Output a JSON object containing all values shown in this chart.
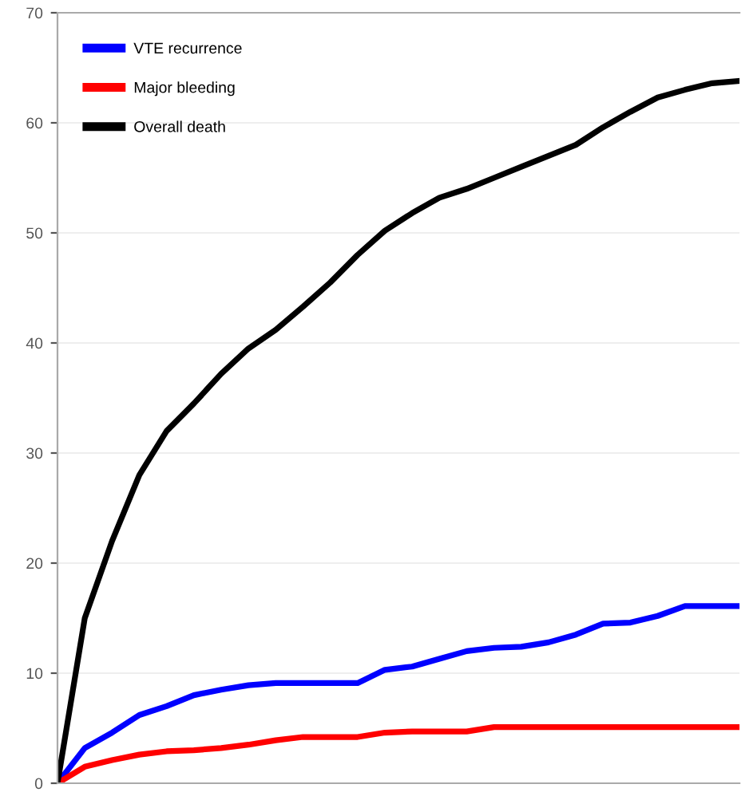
{
  "chart_data": {
    "type": "line",
    "categories": [
      null,
      null,
      null,
      null,
      null,
      null,
      null,
      null,
      null,
      null,
      null,
      null,
      null,
      null,
      null,
      null,
      null,
      null,
      null,
      null,
      null,
      null,
      null,
      null,
      null,
      null
    ],
    "series": [
      {
        "name": "VTE recurrence",
        "color": "#0000ff",
        "values": [
          0,
          3.2,
          4.6,
          6.2,
          7,
          8,
          8.5,
          8.9,
          9.1,
          9.1,
          9.1,
          9.1,
          10.3,
          10.6,
          11.3,
          12,
          12.3,
          12.4,
          12.8,
          13.5,
          14.5,
          14.6,
          15.2,
          16.1,
          16.1,
          16.1
        ]
      },
      {
        "name": "Major bleeding",
        "color": "#ff0000",
        "values": [
          0,
          1.5,
          2.1,
          2.6,
          2.9,
          3.0,
          3.2,
          3.5,
          3.9,
          4.2,
          4.2,
          4.2,
          4.6,
          4.7,
          4.7,
          4.7,
          5.1,
          5.1,
          5.1,
          5.1,
          5.1,
          5.1,
          5.1,
          5.1,
          5.1,
          5.1
        ]
      },
      {
        "name": "Overall death",
        "color": "#000000",
        "values": [
          0,
          15,
          22,
          28,
          32,
          34.5,
          37.2,
          39.5,
          41.2,
          43.3,
          45.5,
          48,
          50.2,
          51.8,
          53.2,
          54,
          55,
          56,
          57,
          58,
          59.6,
          61,
          62.3,
          63,
          63.6,
          63.8
        ]
      }
    ],
    "ylim": [
      0,
      70
    ],
    "yticks": [
      0,
      10,
      20,
      30,
      40,
      50,
      60,
      70
    ],
    "tick_labels": "y",
    "grid": "y",
    "legend": "top left",
    "marker": "none",
    "line_style": "solid"
  }
}
